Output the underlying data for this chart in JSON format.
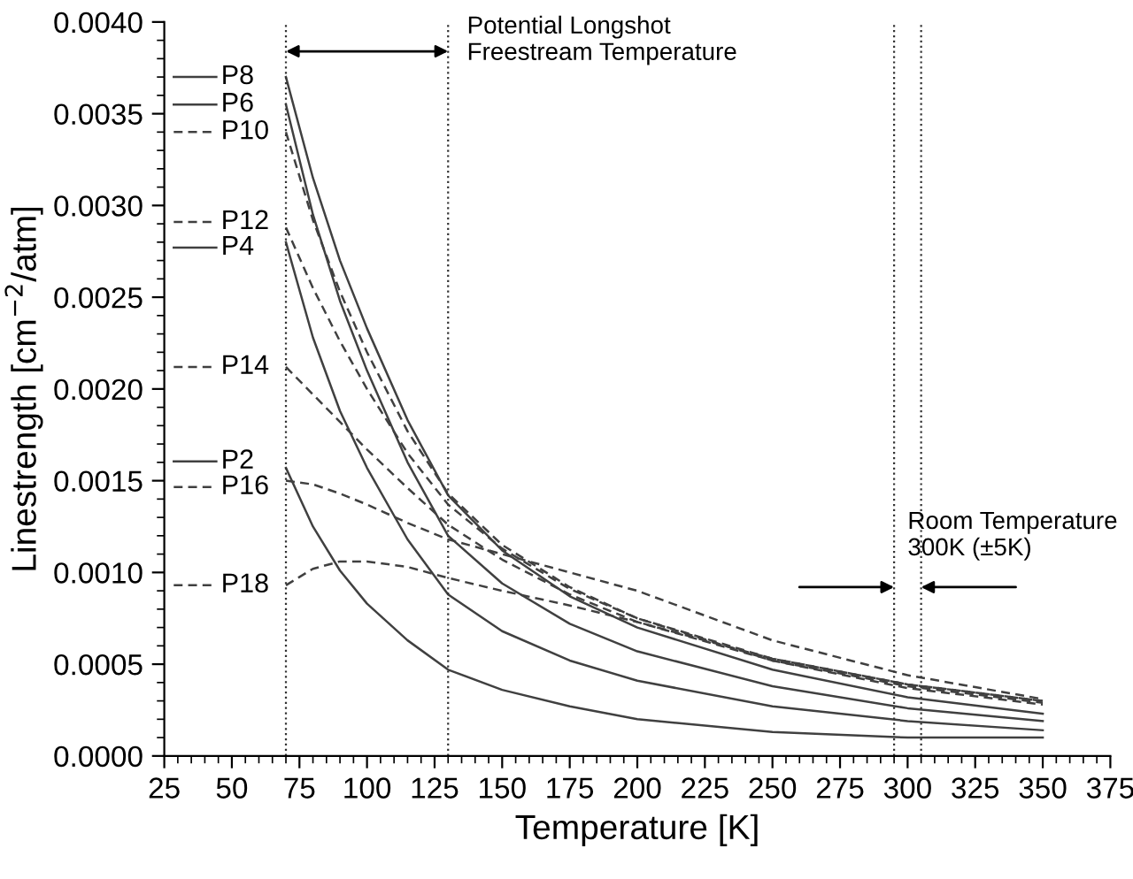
{
  "chart_data": {
    "type": "line",
    "xlabel": "Temperature [K]",
    "ylabel": "Linestrength [cm$^{−2}$/atm]",
    "x": [
      70,
      80,
      90,
      100,
      115,
      130,
      150,
      175,
      200,
      250,
      300,
      350
    ],
    "series": [
      {
        "name": "P8",
        "color": "#404040",
        "line_style": "solid",
        "values": [
          0.0037,
          0.00315,
          0.0027,
          0.00233,
          0.00183,
          0.00142,
          0.00112,
          0.00087,
          0.0007,
          0.00047,
          0.00032,
          0.00023
        ]
      },
      {
        "name": "P6",
        "color": "#404040",
        "line_style": "solid",
        "values": [
          0.00355,
          0.00295,
          0.00248,
          0.0021,
          0.0016,
          0.0012,
          0.00094,
          0.00072,
          0.00057,
          0.00038,
          0.00026,
          0.00019
        ]
      },
      {
        "name": "P10",
        "color": "#404040",
        "line_style": "dashed",
        "values": [
          0.0034,
          0.00292,
          0.00253,
          0.0022,
          0.00177,
          0.00143,
          0.00115,
          0.00092,
          0.00075,
          0.00052,
          0.00038,
          0.00029
        ]
      },
      {
        "name": "P12",
        "color": "#404040",
        "line_style": "dashed",
        "values": [
          0.00288,
          0.00255,
          0.00226,
          0.002,
          0.00165,
          0.00137,
          0.00113,
          0.00091,
          0.00075,
          0.00053,
          0.00039,
          0.0003
        ]
      },
      {
        "name": "P4",
        "color": "#404040",
        "line_style": "solid",
        "values": [
          0.0028,
          0.00228,
          0.00188,
          0.00157,
          0.00118,
          0.00088,
          0.00068,
          0.00052,
          0.00041,
          0.00027,
          0.00019,
          0.00014
        ]
      },
      {
        "name": "P14",
        "color": "#404040",
        "line_style": "dashed",
        "values": [
          0.00212,
          0.00197,
          0.00182,
          0.00167,
          0.00146,
          0.00126,
          0.00107,
          0.00088,
          0.00073,
          0.00053,
          0.00039,
          0.0003
        ]
      },
      {
        "name": "P2",
        "color": "#404040",
        "line_style": "solid",
        "values": [
          0.00157,
          0.00125,
          0.00101,
          0.00083,
          0.00063,
          0.00047,
          0.00036,
          0.00027,
          0.0002,
          0.00013,
          0.0001,
          0.0001
        ]
      },
      {
        "name": "P16",
        "color": "#404040",
        "line_style": "dashed",
        "values": [
          0.0015,
          0.00148,
          0.00143,
          0.00137,
          0.00127,
          0.00118,
          0.0011,
          0.001,
          0.0009,
          0.00063,
          0.00044,
          0.00031
        ]
      },
      {
        "name": "P18",
        "color": "#404040",
        "line_style": "dashed",
        "values": [
          0.00093,
          0.00102,
          0.00106,
          0.00106,
          0.00103,
          0.00097,
          0.0009,
          0.00082,
          0.00073,
          0.00052,
          0.00037,
          0.00028
        ]
      }
    ],
    "xlim": [
      25,
      375
    ],
    "xticks": [
      25,
      50,
      75,
      100,
      125,
      150,
      175,
      200,
      225,
      250,
      275,
      300,
      325,
      350,
      375
    ],
    "ylim": [
      0,
      0.004
    ],
    "yticks": [
      {
        "value": 0,
        "label": "0.0000"
      },
      {
        "value": 0.0005,
        "label": "0.0005"
      },
      {
        "value": 0.001,
        "label": "0.0010"
      },
      {
        "value": 0.0015,
        "label": "0.0015"
      },
      {
        "value": 0.002,
        "label": "0.0020"
      },
      {
        "value": 0.0025,
        "label": "0.0025"
      },
      {
        "value": 0.003,
        "label": "0.0030"
      },
      {
        "value": 0.0035,
        "label": "0.0035"
      },
      {
        "value": 0.004,
        "label": "0.0040"
      }
    ],
    "ref_lines": [
      {
        "axis": "x",
        "value": 70,
        "line_style": "dotted"
      },
      {
        "axis": "x",
        "value": 130,
        "line_style": "dotted"
      },
      {
        "axis": "x",
        "value": 295,
        "line_style": "dotted"
      },
      {
        "axis": "x",
        "value": 305,
        "line_style": "dotted"
      }
    ],
    "annotations": [
      "Potential Longshot\nFreestream Temperature",
      "Room Temperature\n300K (±5K)"
    ],
    "legend": "left",
    "grid": false,
    "marker": "none"
  }
}
